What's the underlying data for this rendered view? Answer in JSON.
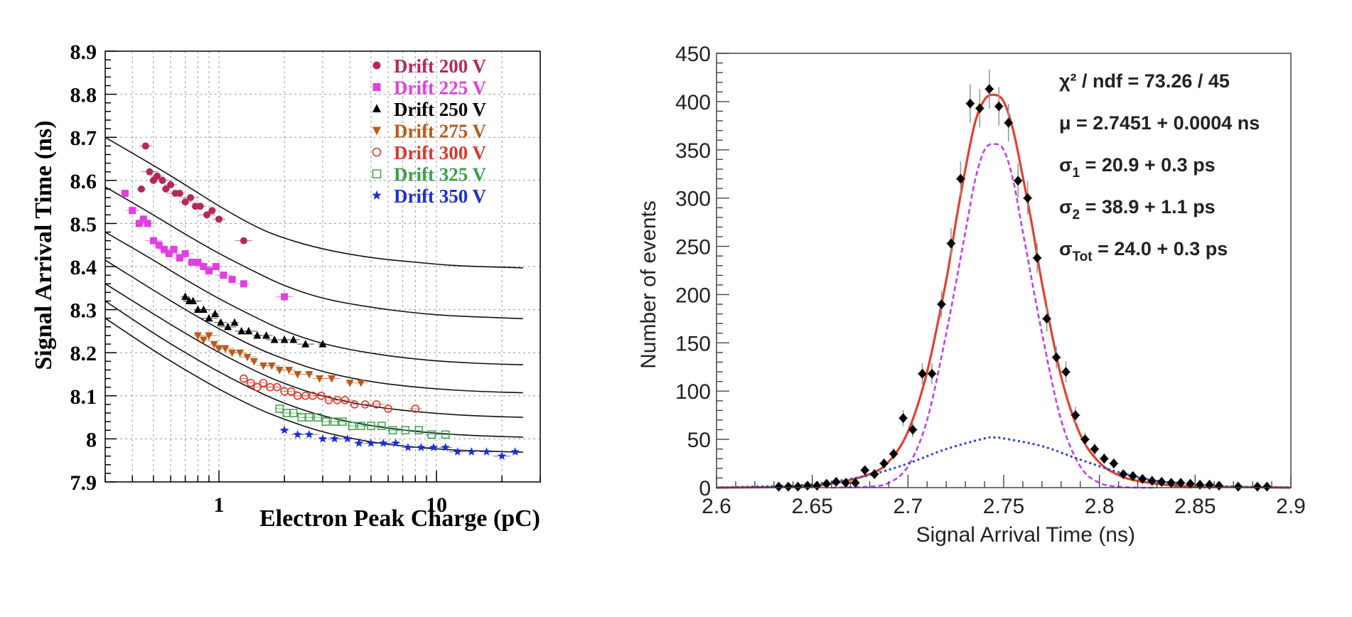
{
  "chart_data": [
    {
      "type": "scatter",
      "xscale": "log",
      "xlabel": "Electron Peak Charge (pC)",
      "ylabel": "Signal Arrival Time (ns)",
      "xlim": [
        0.3,
        30
      ],
      "ylim": [
        7.9,
        8.9
      ],
      "xticks": [
        1,
        10
      ],
      "xtick_labels": [
        "1",
        "10"
      ],
      "yticks": [
        7.9,
        8.0,
        8.1,
        8.2,
        8.3,
        8.4,
        8.5,
        8.6,
        8.7,
        8.8,
        8.9
      ],
      "ytick_labels": [
        "7.9",
        "8",
        "8.1",
        "8.2",
        "8.3",
        "8.4",
        "8.5",
        "8.6",
        "8.7",
        "8.8",
        "8.9"
      ],
      "grid": true,
      "legend_position": "top-right",
      "fit_curves": [
        {
          "series": "Drift 200 V",
          "x": [
            0.3,
            0.5,
            0.7,
            1,
            1.5,
            2,
            3,
            5,
            8,
            12,
            18,
            25
          ],
          "y": [
            8.7,
            8.635,
            8.59,
            8.54,
            8.49,
            8.465,
            8.44,
            8.42,
            8.41,
            8.402,
            8.399,
            8.397
          ]
        },
        {
          "series": "Drift 225 V",
          "x": [
            0.3,
            0.5,
            0.7,
            1,
            1.5,
            2,
            3,
            5,
            8,
            12,
            18,
            25
          ],
          "y": [
            8.585,
            8.52,
            8.475,
            8.43,
            8.385,
            8.355,
            8.325,
            8.305,
            8.292,
            8.285,
            8.282,
            8.279
          ]
        },
        {
          "series": "Drift 250 V",
          "x": [
            0.3,
            0.5,
            0.7,
            1,
            1.5,
            2,
            3,
            5,
            8,
            12,
            18,
            25
          ],
          "y": [
            8.48,
            8.415,
            8.37,
            8.325,
            8.28,
            8.25,
            8.22,
            8.198,
            8.185,
            8.178,
            8.174,
            8.172
          ]
        },
        {
          "series": "Drift 275 V",
          "x": [
            0.3,
            0.5,
            0.7,
            1,
            1.5,
            2,
            3,
            5,
            8,
            12,
            18,
            25
          ],
          "y": [
            8.415,
            8.345,
            8.3,
            8.255,
            8.21,
            8.185,
            8.155,
            8.132,
            8.12,
            8.113,
            8.109,
            8.107
          ]
        },
        {
          "series": "Drift 300 V",
          "x": [
            0.3,
            0.5,
            0.7,
            1,
            1.5,
            2,
            3,
            5,
            8,
            12,
            18,
            25
          ],
          "y": [
            8.36,
            8.29,
            8.245,
            8.2,
            8.155,
            8.128,
            8.098,
            8.075,
            8.063,
            8.056,
            8.052,
            8.05
          ]
        },
        {
          "series": "Drift 325 V",
          "x": [
            0.3,
            0.5,
            0.7,
            1,
            1.5,
            2,
            3,
            5,
            8,
            12,
            18,
            25
          ],
          "y": [
            8.32,
            8.245,
            8.2,
            8.155,
            8.11,
            8.082,
            8.052,
            8.03,
            8.017,
            8.01,
            8.006,
            8.004
          ]
        },
        {
          "series": "Drift 350 V",
          "x": [
            0.3,
            0.5,
            0.7,
            1,
            1.5,
            2,
            3,
            5,
            8,
            12,
            18,
            25
          ],
          "y": [
            8.28,
            8.205,
            8.16,
            8.115,
            8.07,
            8.045,
            8.015,
            7.992,
            7.98,
            7.974,
            7.971,
            7.969
          ]
        }
      ],
      "series": [
        {
          "name": "Drift 200 V",
          "color": "#b5285a",
          "marker": "circle-filled",
          "x": [
            0.44,
            0.46,
            0.48,
            0.5,
            0.52,
            0.55,
            0.57,
            0.6,
            0.63,
            0.66,
            0.7,
            0.74,
            0.78,
            0.82,
            0.88,
            0.93,
            1.0,
            1.3
          ],
          "y": [
            8.58,
            8.68,
            8.62,
            8.6,
            8.61,
            8.6,
            8.58,
            8.59,
            8.57,
            8.57,
            8.55,
            8.56,
            8.54,
            8.54,
            8.52,
            8.53,
            8.51,
            8.46
          ]
        },
        {
          "name": "Drift 225 V",
          "color": "#e040e0",
          "marker": "square-filled",
          "x": [
            0.37,
            0.4,
            0.43,
            0.45,
            0.47,
            0.5,
            0.53,
            0.56,
            0.59,
            0.62,
            0.66,
            0.7,
            0.75,
            0.8,
            0.85,
            0.9,
            0.97,
            1.05,
            1.15,
            1.3,
            2.0
          ],
          "y": [
            8.57,
            8.53,
            8.5,
            8.51,
            8.5,
            8.46,
            8.45,
            8.44,
            8.43,
            8.44,
            8.42,
            8.43,
            8.41,
            8.41,
            8.4,
            8.39,
            8.4,
            8.38,
            8.37,
            8.36,
            8.33
          ]
        },
        {
          "name": "Drift 250 V",
          "color": "#000000",
          "marker": "triangle-up",
          "x": [
            0.7,
            0.73,
            0.76,
            0.8,
            0.85,
            0.9,
            0.96,
            1.02,
            1.1,
            1.18,
            1.27,
            1.37,
            1.5,
            1.65,
            1.8,
            2.0,
            2.2,
            2.5,
            3.0
          ],
          "y": [
            8.33,
            8.32,
            8.32,
            8.3,
            8.3,
            8.28,
            8.29,
            8.27,
            8.26,
            8.27,
            8.25,
            8.25,
            8.24,
            8.24,
            8.23,
            8.23,
            8.23,
            8.22,
            8.22
          ]
        },
        {
          "name": "Drift 275 V",
          "color": "#b85a1c",
          "marker": "triangle-down",
          "x": [
            0.8,
            0.85,
            0.9,
            0.95,
            1.0,
            1.07,
            1.15,
            1.25,
            1.35,
            1.45,
            1.6,
            1.75,
            1.9,
            2.1,
            2.3,
            2.6,
            2.9,
            3.3,
            4.0,
            4.5
          ],
          "y": [
            8.24,
            8.23,
            8.24,
            8.22,
            8.21,
            8.21,
            8.2,
            8.2,
            8.19,
            8.18,
            8.17,
            8.17,
            8.16,
            8.16,
            8.15,
            8.15,
            8.14,
            8.14,
            8.13,
            8.13
          ]
        },
        {
          "name": "Drift 300 V",
          "color": "#d93a2a",
          "marker": "circle-open",
          "x": [
            1.3,
            1.4,
            1.5,
            1.6,
            1.72,
            1.85,
            2.0,
            2.15,
            2.3,
            2.5,
            2.7,
            2.95,
            3.2,
            3.5,
            3.8,
            4.2,
            4.7,
            5.3,
            6.0,
            8.0
          ],
          "y": [
            8.14,
            8.13,
            8.12,
            8.13,
            8.12,
            8.12,
            8.11,
            8.11,
            8.1,
            8.1,
            8.1,
            8.1,
            8.09,
            8.09,
            8.09,
            8.08,
            8.08,
            8.08,
            8.07,
            8.07
          ]
        },
        {
          "name": "Drift 325 V",
          "color": "#3aa04a",
          "marker": "square-open",
          "x": [
            1.9,
            2.05,
            2.2,
            2.4,
            2.6,
            2.85,
            3.1,
            3.4,
            3.7,
            4.1,
            4.5,
            5.0,
            5.6,
            6.3,
            7.2,
            8.3,
            9.5,
            11
          ],
          "y": [
            8.07,
            8.06,
            8.06,
            8.05,
            8.05,
            8.05,
            8.04,
            8.04,
            8.04,
            8.03,
            8.03,
            8.03,
            8.03,
            8.02,
            8.02,
            8.02,
            8.01,
            8.01
          ]
        },
        {
          "name": "Drift 350 V",
          "color": "#1a2ed8",
          "marker": "star",
          "x": [
            2.0,
            2.3,
            2.6,
            3.0,
            3.4,
            3.9,
            4.4,
            5.0,
            5.7,
            6.5,
            7.4,
            8.5,
            9.7,
            11,
            12.5,
            14.5,
            17,
            20,
            23
          ],
          "y": [
            8.02,
            8.01,
            8.01,
            8.0,
            8.0,
            8.0,
            7.99,
            7.99,
            7.99,
            7.99,
            7.98,
            7.98,
            7.98,
            7.98,
            7.97,
            7.97,
            7.97,
            7.96,
            7.97
          ]
        }
      ]
    },
    {
      "type": "scatter",
      "xlabel": "Signal Arrival Time (ns)",
      "ylabel": "Number of events",
      "xlim": [
        2.6,
        2.9
      ],
      "ylim": [
        0,
        450
      ],
      "xticks": [
        2.6,
        2.65,
        2.7,
        2.75,
        2.8,
        2.85,
        2.9
      ],
      "xtick_labels": [
        "2.6",
        "2.65",
        "2.7",
        "2.75",
        "2.8",
        "2.85",
        "2.9"
      ],
      "yticks": [
        0,
        50,
        100,
        150,
        200,
        250,
        300,
        350,
        400,
        450
      ],
      "ytick_labels": [
        "0",
        "50",
        "100",
        "150",
        "200",
        "250",
        "300",
        "350",
        "400",
        "450"
      ],
      "annotations": [
        {
          "label": "χ² / ndf = 73.26 / 45"
        },
        {
          "symbol": "μ",
          "label": " = 2.7451 + 0.0004 ns"
        },
        {
          "symbol": "σ",
          "sub": "1",
          "label": " = 20.9 + 0.3 ps"
        },
        {
          "symbol": "σ",
          "sub": "2",
          "label": " = 38.9 + 1.1 ps"
        },
        {
          "symbol": "σ",
          "sub": "Tot",
          "label": " = 24.0 + 0.3 ps"
        }
      ],
      "series": [
        {
          "color": "#000000",
          "marker": "diamond-errorbar",
          "x": [
            2.6325,
            2.6375,
            2.6425,
            2.6475,
            2.6525,
            2.6575,
            2.6625,
            2.6675,
            2.6725,
            2.6775,
            2.6825,
            2.6875,
            2.6925,
            2.6975,
            2.7025,
            2.7075,
            2.7125,
            2.7175,
            2.7225,
            2.7275,
            2.7325,
            2.7375,
            2.7425,
            2.7475,
            2.7525,
            2.7575,
            2.7625,
            2.7675,
            2.7725,
            2.7775,
            2.7825,
            2.7875,
            2.7925,
            2.7975,
            2.8025,
            2.8075,
            2.8125,
            2.8175,
            2.8225,
            2.8275,
            2.8325,
            2.8375,
            2.8425,
            2.8475,
            2.8525,
            2.8575,
            2.8625,
            2.8725,
            2.8825,
            2.8875
          ],
          "y": [
            1,
            1,
            1,
            2,
            2,
            4,
            6,
            5,
            5,
            18,
            14,
            25,
            35,
            72,
            60,
            118,
            118,
            190,
            253,
            320,
            398,
            393,
            413,
            395,
            378,
            318,
            300,
            238,
            175,
            135,
            120,
            75,
            50,
            40,
            30,
            25,
            14,
            12,
            9,
            7,
            6,
            5,
            5,
            4,
            3,
            3,
            2,
            1,
            1,
            1
          ]
        },
        {
          "color": "#e04030",
          "style": "solid",
          "x": [
            2.6,
            2.64,
            2.66,
            2.68,
            2.69,
            2.7,
            2.71,
            2.72,
            2.725,
            2.73,
            2.735,
            2.74,
            2.745,
            2.75,
            2.755,
            2.76,
            2.765,
            2.77,
            2.78,
            2.79,
            2.8,
            2.81,
            2.82,
            2.84,
            2.86,
            2.9
          ],
          "y": [
            0,
            1,
            4,
            14,
            27,
            58,
            120,
            215,
            275,
            330,
            378,
            402,
            407,
            400,
            370,
            322,
            270,
            212,
            115,
            55,
            26,
            13,
            7,
            2,
            1,
            0
          ]
        },
        {
          "color": "#c040f0",
          "style": "dashed",
          "x": [
            2.66,
            2.68,
            2.69,
            2.7,
            2.71,
            2.72,
            2.73,
            2.735,
            2.74,
            2.745,
            2.75,
            2.755,
            2.76,
            2.77,
            2.78,
            2.79,
            2.8,
            2.81,
            2.82,
            2.83
          ],
          "y": [
            0,
            1,
            5,
            22,
            70,
            160,
            265,
            318,
            350,
            356,
            350,
            318,
            265,
            160,
            70,
            22,
            5,
            1,
            0,
            0
          ]
        },
        {
          "color": "#2a40e0",
          "style": "dotted",
          "x": [
            2.6,
            2.62,
            2.64,
            2.66,
            2.68,
            2.7,
            2.72,
            2.74,
            2.745,
            2.75,
            2.77,
            2.79,
            2.81,
            2.83,
            2.85,
            2.87,
            2.9
          ],
          "y": [
            0,
            1,
            2,
            6,
            13,
            25,
            40,
            51,
            52,
            51,
            43,
            29,
            16,
            7,
            3,
            1,
            0
          ]
        }
      ]
    }
  ]
}
